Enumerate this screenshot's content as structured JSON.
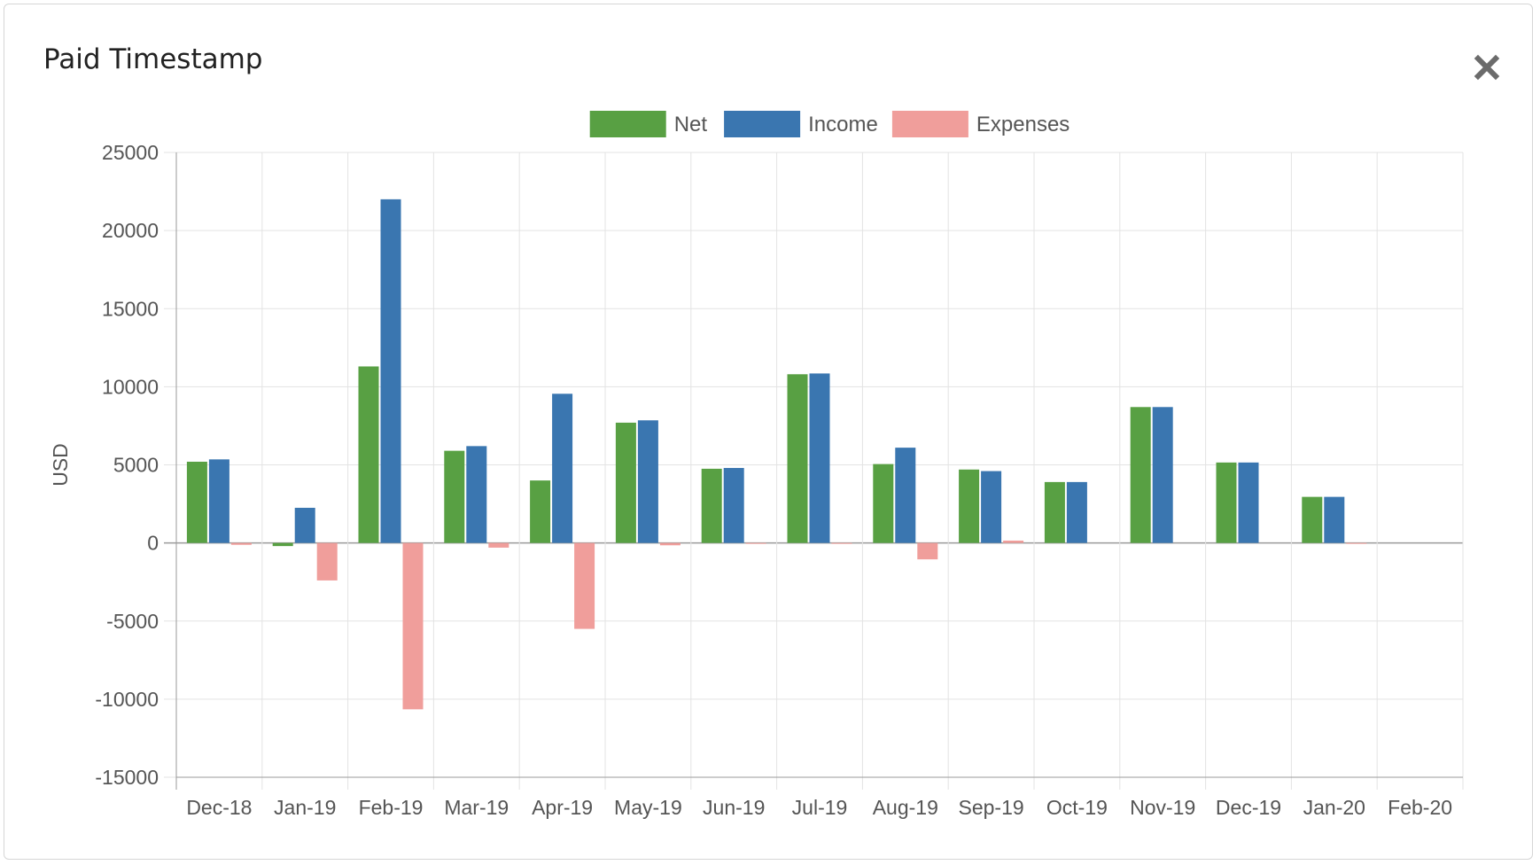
{
  "modal": {
    "title": "Paid Timestamp",
    "close_icon": "close-icon"
  },
  "colors": {
    "net": "#58a043",
    "income": "#3a76b0",
    "expenses": "#f09e9b",
    "grid": "#e3e3e3",
    "axis": "#9a9a9a"
  },
  "chart_data": {
    "type": "bar",
    "title": "",
    "xlabel": "",
    "ylabel": "USD",
    "ylim": [
      -15000,
      25000
    ],
    "yticks": [
      25000,
      20000,
      15000,
      10000,
      5000,
      0,
      -5000,
      -10000,
      -15000
    ],
    "grid": true,
    "legend_position": "top-center",
    "categories": [
      "Dec-18",
      "Jan-19",
      "Feb-19",
      "Mar-19",
      "Apr-19",
      "May-19",
      "Jun-19",
      "Jul-19",
      "Aug-19",
      "Sep-19",
      "Oct-19",
      "Nov-19",
      "Dec-19",
      "Jan-20",
      "Feb-20"
    ],
    "series": [
      {
        "name": "Net",
        "values": [
          5200,
          -200,
          11300,
          5900,
          4000,
          7700,
          4750,
          10800,
          5050,
          4700,
          3900,
          8700,
          5150,
          2950,
          0
        ]
      },
      {
        "name": "Income",
        "values": [
          5350,
          2250,
          22000,
          6200,
          9550,
          7850,
          4800,
          10850,
          6100,
          4600,
          3900,
          8700,
          5150,
          2950,
          0
        ]
      },
      {
        "name": "Expenses",
        "values": [
          -120,
          -2400,
          -10650,
          -300,
          -5500,
          -150,
          -50,
          -50,
          -1050,
          150,
          0,
          0,
          0,
          -20,
          0
        ]
      }
    ]
  }
}
